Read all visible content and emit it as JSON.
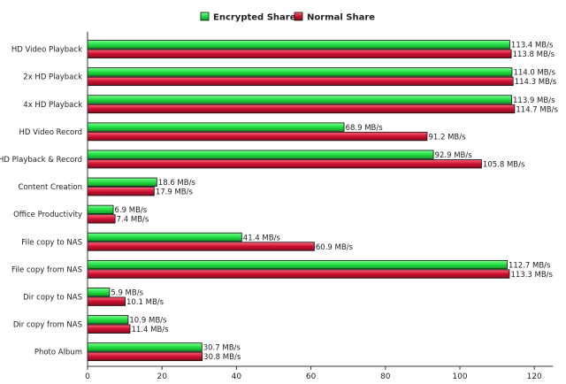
{
  "chart_data": {
    "type": "bar",
    "orientation": "horizontal",
    "title": "",
    "xlabel": "",
    "ylabel": "",
    "xlim": [
      0,
      125
    ],
    "xticks": [
      0,
      20,
      40,
      60,
      80,
      100,
      120
    ],
    "grid": false,
    "legend_position": "top",
    "categories": [
      "HD Video Playback",
      "2x HD Playback",
      "4x HD Playback",
      "HD Video Record",
      "HD Playback & Record",
      "Content Creation",
      "Office Productivity",
      "File copy to NAS",
      "File copy from NAS",
      "Dir copy to NAS",
      "Dir copy from NAS",
      "Photo Album"
    ],
    "series": [
      {
        "name": "Encrypted Share",
        "color": "#22dd44",
        "values": [
          113.4,
          114.0,
          113.9,
          68.9,
          92.9,
          18.6,
          6.9,
          41.4,
          112.7,
          5.9,
          10.9,
          30.7
        ],
        "labels": [
          "113.4 MB/s",
          "114.0 MB/s",
          "113.9 MB/s",
          "68.9 MB/s",
          "92.9 MB/s",
          "18.6 MB/s",
          "6.9 MB/s",
          "41.4 MB/s",
          "112.7 MB/s",
          "5.9 MB/s",
          "10.9 MB/s",
          "30.7 MB/s"
        ]
      },
      {
        "name": "Normal Share",
        "color": "#cc1133",
        "values": [
          113.8,
          114.3,
          114.7,
          91.2,
          105.8,
          17.9,
          7.4,
          60.9,
          113.3,
          10.1,
          11.4,
          30.8
        ],
        "labels": [
          "113.8 MB/s",
          "114.3 MB/s",
          "114.7 MB/s",
          "91.2 MB/s",
          "105.8 MB/s",
          "17.9 MB/s",
          "7.4 MB/s",
          "60.9 MB/s",
          "113.3 MB/s",
          "10.1 MB/s",
          "11.4 MB/s",
          "30.8 MB/s"
        ]
      }
    ]
  }
}
